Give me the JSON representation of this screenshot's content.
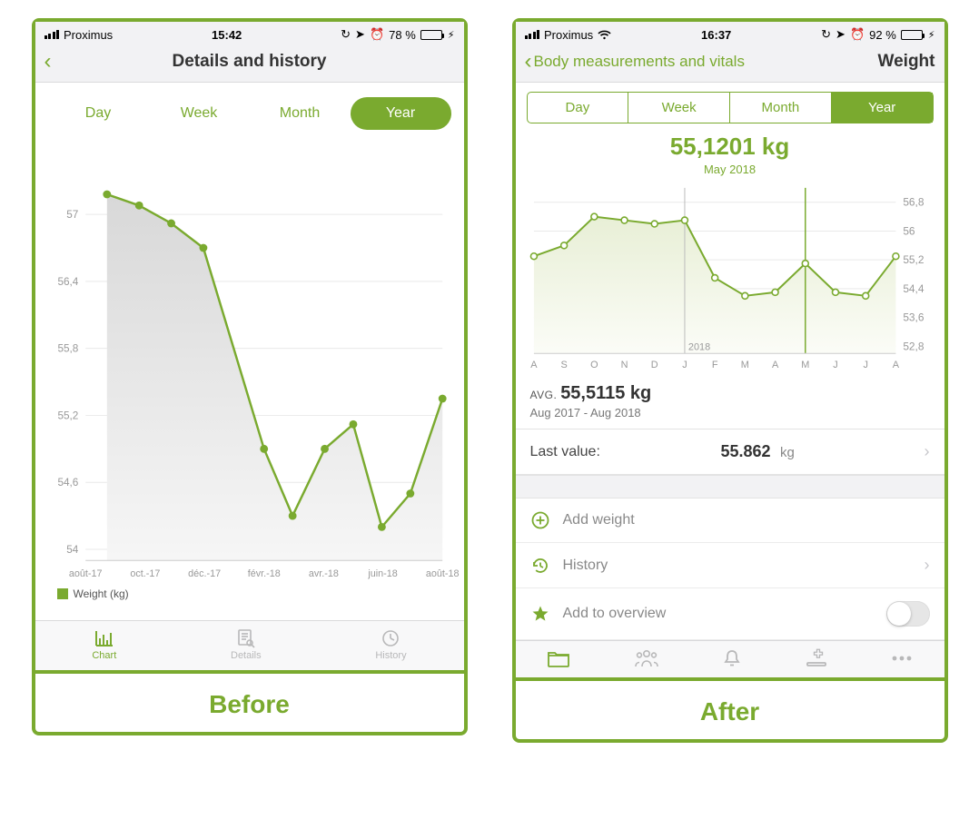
{
  "colors": {
    "accent": "#7aaa2f",
    "accent_light": "#b8d57f",
    "frame_border": "#7aaa2f",
    "text_dark": "#333333",
    "text_muted": "#888888",
    "grid": "#e0e0e0",
    "tab_inactive": "#b8b8b9",
    "separator": "#e3e3e3",
    "bg_panel": "#f2f2f4",
    "battery_fill": "#5fb947"
  },
  "before": {
    "caption": "Before",
    "status": {
      "carrier": "Proximus",
      "time": "15:42",
      "battery_pct": "78 %",
      "battery_fill_pct": 78,
      "show_wifi": false
    },
    "nav": {
      "title": "Details and history"
    },
    "segments": {
      "items": [
        "Day",
        "Week",
        "Month",
        "Year"
      ],
      "active_index": 3,
      "style": "pill"
    },
    "chart": {
      "type": "line_area",
      "line_color": "#7aaa2f",
      "fill_from": "#d8d8d8",
      "fill_to": "#f6f6f6",
      "marker": "filled_circle",
      "marker_radius": 4.5,
      "line_width": 2.5,
      "grid_color": "#e9e9e9",
      "y_axis_side": "left",
      "y_ticks": [
        54,
        54.6,
        55.2,
        55.8,
        56.4,
        57
      ],
      "ylim": [
        53.9,
        57.4
      ],
      "x_labels": [
        "août-17",
        "oct.-17",
        "déc.-17",
        "févr.-18",
        "avr.-18",
        "juin-18",
        "août-18"
      ],
      "x_positions": [
        0,
        0.167,
        0.333,
        0.5,
        0.667,
        0.833,
        1.0
      ],
      "points": [
        {
          "x": 0.06,
          "y": 57.18
        },
        {
          "x": 0.15,
          "y": 57.08
        },
        {
          "x": 0.24,
          "y": 56.92
        },
        {
          "x": 0.33,
          "y": 56.7
        },
        {
          "x": 0.5,
          "y": 54.9
        },
        {
          "x": 0.58,
          "y": 54.3
        },
        {
          "x": 0.67,
          "y": 54.9
        },
        {
          "x": 0.75,
          "y": 55.12
        },
        {
          "x": 0.83,
          "y": 54.2
        },
        {
          "x": 0.91,
          "y": 54.5
        },
        {
          "x": 1.0,
          "y": 55.35
        }
      ],
      "legend": "Weight (kg)"
    },
    "bottom_tabs": {
      "items": [
        {
          "label": "Chart",
          "icon": "bar-chart-icon",
          "active": true
        },
        {
          "label": "Details",
          "icon": "doc-search-icon",
          "active": false
        },
        {
          "label": "History",
          "icon": "clock-icon",
          "active": false
        }
      ]
    }
  },
  "after": {
    "caption": "After",
    "status": {
      "carrier": "Proximus",
      "time": "16:37",
      "battery_pct": "92 %",
      "battery_fill_pct": 92,
      "show_wifi": true
    },
    "nav": {
      "breadcrumb": "Body measurements and vitals",
      "title": "Weight"
    },
    "segments": {
      "items": [
        "Day",
        "Week",
        "Month",
        "Year"
      ],
      "active_index": 3,
      "style": "boxed"
    },
    "selected": {
      "value": "55,1201 kg",
      "subtitle": "May 2018"
    },
    "chart": {
      "type": "line_area",
      "line_color": "#7aaa2f",
      "fill_from": "#e8efd6",
      "fill_to": "#fbfcf7",
      "marker": "hollow_circle",
      "marker_radius": 3.5,
      "line_width": 2,
      "grid_color": "#e9e9e9",
      "y_axis_side": "right",
      "y_ticks": [
        52.8,
        53.6,
        54.4,
        55.2,
        56,
        56.8
      ],
      "ylim": [
        52.6,
        57.2
      ],
      "x_labels": [
        "A",
        "S",
        "O",
        "N",
        "D",
        "J",
        "F",
        "M",
        "A",
        "M",
        "J",
        "J",
        "A"
      ],
      "x_positions": [
        0,
        0.0833,
        0.1667,
        0.25,
        0.3333,
        0.4167,
        0.5,
        0.5833,
        0.6667,
        0.75,
        0.8333,
        0.9167,
        1.0
      ],
      "vline_year_x": 0.4167,
      "vline_year_label": "2018",
      "vline_select_x": 0.75,
      "points": [
        {
          "x": 0.0,
          "y": 55.3
        },
        {
          "x": 0.0833,
          "y": 55.6
        },
        {
          "x": 0.1667,
          "y": 56.4
        },
        {
          "x": 0.25,
          "y": 56.3
        },
        {
          "x": 0.3333,
          "y": 56.2
        },
        {
          "x": 0.4167,
          "y": 56.3
        },
        {
          "x": 0.5,
          "y": 54.7
        },
        {
          "x": 0.5833,
          "y": 54.2
        },
        {
          "x": 0.6667,
          "y": 54.3
        },
        {
          "x": 0.75,
          "y": 55.1
        },
        {
          "x": 0.8333,
          "y": 54.3
        },
        {
          "x": 0.9167,
          "y": 54.2
        },
        {
          "x": 1.0,
          "y": 55.3
        }
      ]
    },
    "summary": {
      "avg_prefix": "AVG.",
      "avg_value": "55,5115 kg",
      "range": "Aug 2017 - Aug 2018",
      "last_label": "Last value:",
      "last_value": "55.862",
      "last_unit": "kg"
    },
    "actions": {
      "add_weight": "Add weight",
      "history": "History",
      "add_overview": "Add to overview",
      "overview_toggle_on": false
    },
    "bottom_tabs": {
      "items": [
        {
          "icon": "folder-icon",
          "active": true
        },
        {
          "icon": "people-icon",
          "active": false
        },
        {
          "icon": "bell-icon",
          "active": false
        },
        {
          "icon": "medical-icon",
          "active": false
        },
        {
          "icon": "more-icon",
          "active": false
        }
      ]
    }
  }
}
